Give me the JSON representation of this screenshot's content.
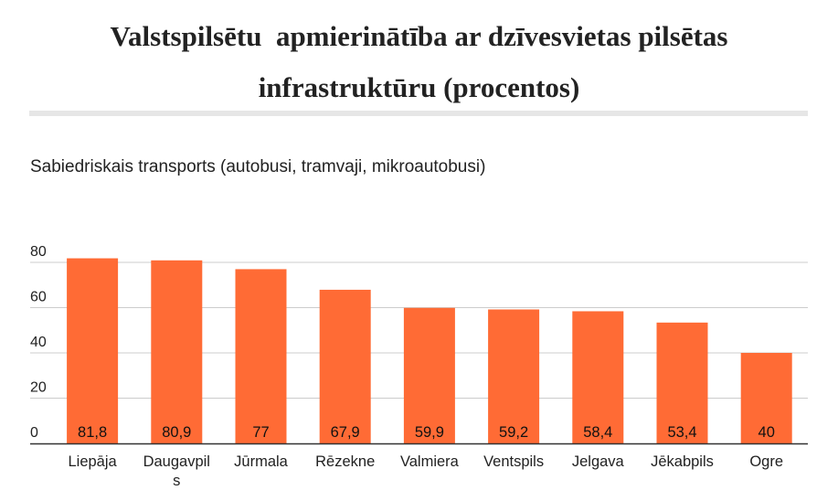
{
  "title_line1": "Valstspilsētu  apmierinātība ar dzīvesvietas pilsētas",
  "title_line2": "infrastruktūru (procentos)",
  "chart_data": {
    "type": "bar",
    "title": "Valstspilsētu  apmierinātība ar dzīvesvietas pilsētas infrastruktūru (procentos)",
    "subtitle": "Sabiedriskais transports (autobusi, tramvaji, mikroautobusi)",
    "xlabel": "",
    "ylabel": "",
    "categories": [
      "Liepāja",
      "Daugavpils",
      "Jūrmala",
      "Rēzekne",
      "Valmiera",
      "Ventspils",
      "Jelgava",
      "Jēkabpils",
      "Ogre"
    ],
    "category_label_lines": [
      [
        "Liepāja"
      ],
      [
        "Daugavpil",
        "s"
      ],
      [
        "Jūrmala"
      ],
      [
        "Rēzekne"
      ],
      [
        "Valmiera"
      ],
      [
        "Ventspils"
      ],
      [
        "Jelgava"
      ],
      [
        "Jēkabpils"
      ],
      [
        "Ogre"
      ]
    ],
    "values": [
      81.8,
      80.9,
      77,
      67.9,
      59.9,
      59.2,
      58.4,
      53.4,
      40
    ],
    "value_labels": [
      "81,8",
      "80,9",
      "77",
      "67,9",
      "59,9",
      "59,2",
      "58,4",
      "53,4",
      "40"
    ],
    "yticks": [
      0,
      20,
      40,
      60,
      80
    ],
    "ylim": [
      0,
      80
    ],
    "grid": true,
    "legend": "none",
    "bar_color": "#ff6b35",
    "grid_color": "#cccccc",
    "axis_color": "#333333"
  }
}
